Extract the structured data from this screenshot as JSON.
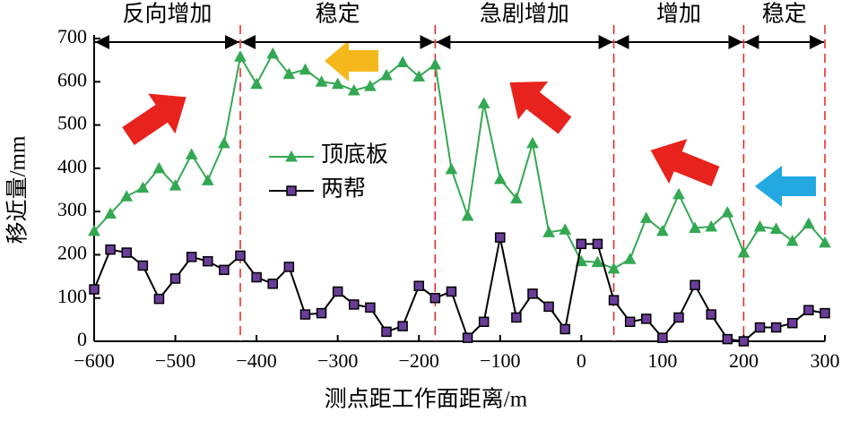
{
  "chart_data": {
    "type": "line",
    "xlabel": "测点距工作面距离/m",
    "ylabel": "移近量/mm",
    "xlim": [
      -600,
      300
    ],
    "ylim": [
      0,
      700
    ],
    "xticks": [
      {
        "value": -600,
        "label": "−600"
      },
      {
        "value": -500,
        "label": "−500"
      },
      {
        "value": -400,
        "label": "−400"
      },
      {
        "value": -300,
        "label": "−300"
      },
      {
        "value": -200,
        "label": "−200"
      },
      {
        "value": -100,
        "label": "−100"
      },
      0,
      100,
      200,
      300
    ],
    "yticks": [
      0,
      100,
      200,
      300,
      400,
      500,
      600,
      700
    ],
    "x": [
      -600,
      -580,
      -560,
      -540,
      -520,
      -500,
      -480,
      -460,
      -440,
      -420,
      -400,
      -380,
      -360,
      -340,
      -320,
      -300,
      -280,
      -260,
      -240,
      -220,
      -200,
      -180,
      -160,
      -140,
      -120,
      -100,
      -80,
      -60,
      -40,
      -20,
      0,
      20,
      40,
      60,
      80,
      100,
      120,
      140,
      160,
      180,
      200,
      220,
      240,
      260,
      280,
      300
    ],
    "series": [
      {
        "name": "顶底板",
        "color": "#33a852",
        "marker": "triangle",
        "marker_fill": "#33a852",
        "values": [
          255,
          295,
          335,
          355,
          400,
          360,
          432,
          372,
          458,
          658,
          595,
          665,
          618,
          628,
          600,
          595,
          580,
          590,
          615,
          645,
          612,
          640,
          398,
          290,
          550,
          375,
          330,
          458,
          252,
          258,
          185,
          183,
          168,
          190,
          285,
          255,
          340,
          262,
          265,
          298,
          205,
          265,
          260,
          232,
          272,
          228
        ]
      },
      {
        "name": "两帮",
        "color": "#000000",
        "marker": "square",
        "marker_fill": "#6a3d9a",
        "values": [
          120,
          212,
          205,
          175,
          98,
          145,
          195,
          185,
          165,
          198,
          148,
          133,
          172,
          62,
          65,
          115,
          85,
          78,
          22,
          35,
          128,
          100,
          115,
          8,
          45,
          240,
          55,
          110,
          80,
          28,
          225,
          225,
          95,
          45,
          52,
          8,
          55,
          130,
          62,
          5,
          0,
          32,
          32,
          42,
          72,
          65
        ]
      }
    ],
    "regions": [
      {
        "label": "反向增加",
        "from": -600,
        "to": -420
      },
      {
        "label": "稳定",
        "from": -420,
        "to": -180
      },
      {
        "label": "急剧增加",
        "from": -180,
        "to": 40
      },
      {
        "label": "增加",
        "from": 40,
        "to": 200
      },
      {
        "label": "稳定",
        "from": 200,
        "to": 300
      }
    ]
  }
}
